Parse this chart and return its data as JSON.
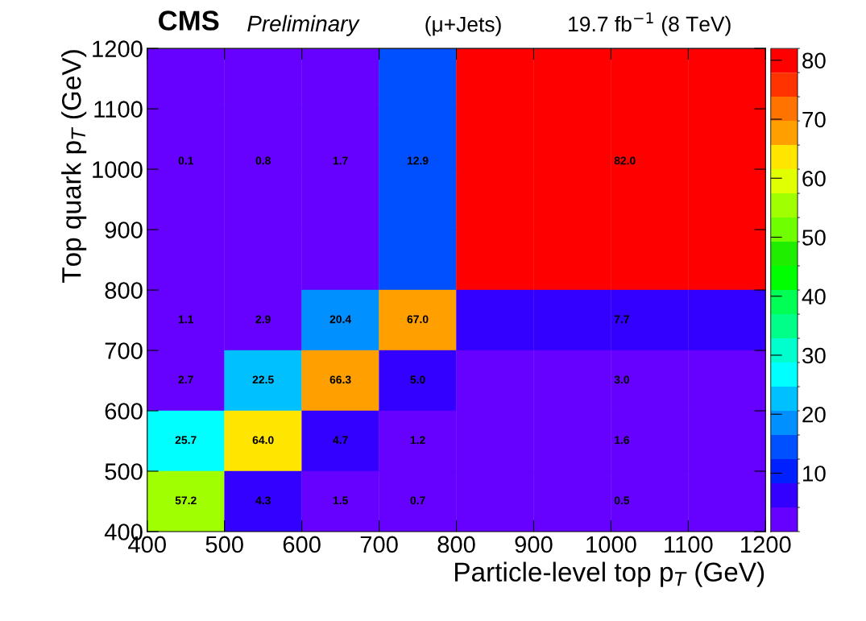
{
  "chart_data": {
    "type": "heatmap",
    "title": "CMS",
    "subtitle": "Preliminary",
    "annotations": [
      "(μ+Jets)",
      "19.7 fb$^{−1}$ (8 TeV)"
    ],
    "xlabel": "Particle-level top p$_{T}$ (GeV)",
    "ylabel": "Top quark p$_{T}$ (GeV)",
    "cells": [
      [
        0.1,
        0.8,
        1.7,
        12.9,
        82.0,
        82.0,
        82.0,
        82.0
      ],
      [
        0.1,
        0.8,
        1.7,
        12.9,
        82.0,
        82.0,
        82.0,
        82.0
      ],
      [
        0.1,
        0.8,
        1.7,
        12.9,
        82.0,
        82.0,
        82.0,
        82.0
      ],
      [
        0.1,
        0.8,
        1.7,
        12.9,
        82.0,
        82.0,
        82.0,
        82.0
      ],
      [
        1.1,
        2.9,
        20.4,
        67.0,
        7.7,
        7.7,
        7.7,
        7.7
      ],
      [
        2.7,
        22.5,
        66.3,
        5.0,
        3.0,
        3.0,
        3.0,
        3.0
      ],
      [
        25.7,
        64.0,
        4.7,
        1.2,
        1.6,
        1.6,
        1.6,
        1.6
      ],
      [
        57.2,
        4.3,
        1.5,
        0.7,
        0.5,
        0.5,
        0.5,
        0.5
      ]
    ],
    "cell_labels": [
      [
        null,
        null,
        null,
        null,
        null,
        null,
        null,
        null
      ],
      [
        "0.1",
        "0.8",
        "1.7",
        "12.9",
        null,
        null,
        "82.0",
        null
      ],
      [
        null,
        null,
        null,
        null,
        null,
        null,
        null,
        null
      ],
      [
        null,
        null,
        null,
        null,
        null,
        null,
        null,
        null
      ],
      [
        "1.1",
        "2.9",
        "20.4",
        "67.0",
        null,
        null,
        "7.7",
        null
      ],
      [
        "2.7",
        "22.5",
        "66.3",
        "5.0",
        null,
        null,
        "3.0",
        null
      ],
      [
        "25.7",
        "64.0",
        "4.7",
        "1.2",
        null,
        null,
        "1.6",
        null
      ],
      [
        "57.2",
        "4.3",
        "1.5",
        "0.7",
        null,
        null,
        "0.5",
        null
      ]
    ],
    "colors": [
      "#6600ff",
      "#3300ff",
      "#0020ff",
      "#0050ff",
      "#0090ff",
      "#00c0ff",
      "#00ffff",
      "#00ffcc",
      "#00ff88",
      "#00ff55",
      "#00ff00",
      "#20ee00",
      "#70ff00",
      "#a0ff00",
      "#e0ff00",
      "#ffe600",
      "#ffa000",
      "#ff7300",
      "#ff3300",
      "#ff0000"
    ],
    "clim": [
      0.1,
      82
    ],
    "cticks": [
      10,
      20,
      30,
      40,
      50,
      60,
      70,
      80
    ],
    "xlim": [
      400,
      1200
    ],
    "ylim": [
      400,
      1200
    ],
    "xticks": [
      400,
      500,
      600,
      700,
      800,
      900,
      1000,
      1100,
      1200
    ],
    "yticks": [
      400,
      500,
      600,
      700,
      800,
      900,
      1000,
      1100,
      1200
    ],
    "grid": false
  }
}
